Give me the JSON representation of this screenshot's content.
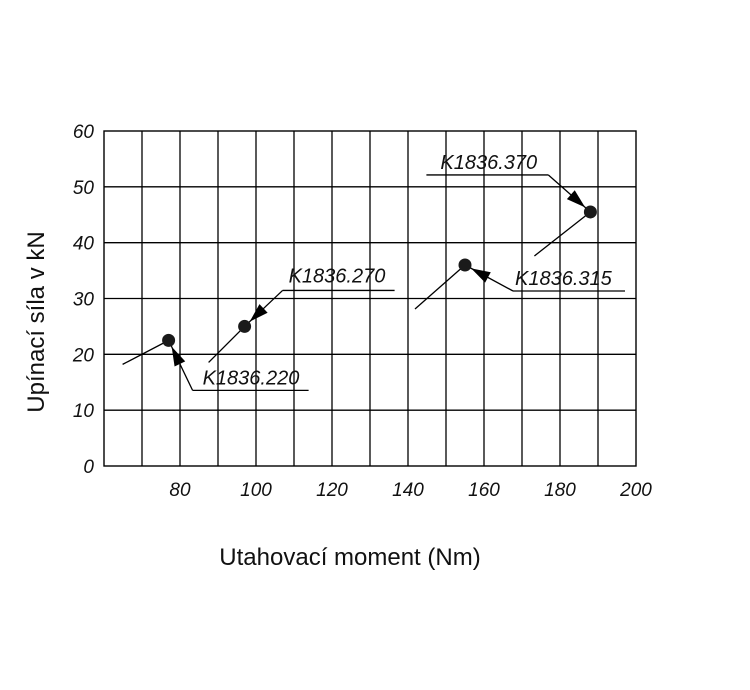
{
  "chart_data": {
    "type": "scatter",
    "xlabel": "Utahovací moment (Nm)",
    "ylabel": "Upínací síla v kN",
    "xlim": [
      60,
      200
    ],
    "ylim": [
      0,
      60
    ],
    "x_ticks": [
      80,
      100,
      120,
      140,
      160,
      180,
      200
    ],
    "y_ticks": [
      0,
      10,
      20,
      30,
      40,
      50,
      60
    ],
    "x_tick_labels": [
      "80",
      "100",
      "120",
      "140",
      "160",
      "180",
      "200"
    ],
    "y_tick_labels": [
      "0",
      "10",
      "20",
      "30",
      "40",
      "50",
      "60"
    ],
    "grid": true,
    "legend": "none",
    "points": [
      {
        "label": "K1836.220",
        "x": 77,
        "y": 22.5,
        "label_pos": "below-right"
      },
      {
        "label": "K1836.270",
        "x": 97,
        "y": 25,
        "label_pos": "above-right"
      },
      {
        "label": "K1836.315",
        "x": 155,
        "y": 36,
        "label_pos": "right"
      },
      {
        "label": "K1836.370",
        "x": 188,
        "y": 45.5,
        "label_pos": "above-left"
      }
    ]
  },
  "style": {
    "line_color": "#000000",
    "point_color": "#1a1a1a"
  }
}
